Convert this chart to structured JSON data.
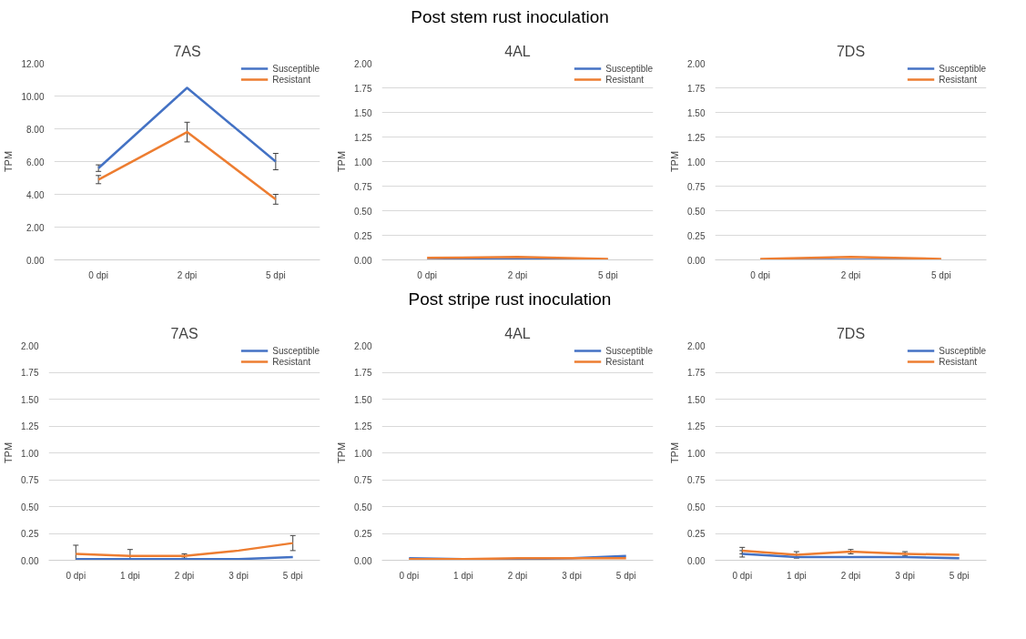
{
  "chart_data": [
    {
      "type": "line",
      "title": "7AS",
      "annotations": [
        "Post stem rust inoculation"
      ],
      "ylabel": "TPM",
      "categories": [
        "0 dpi",
        "2 dpi",
        "5 dpi"
      ],
      "ylim": [
        0,
        12
      ],
      "yticks": [
        {
          "value": 0,
          "label": "0.00"
        },
        {
          "value": 2,
          "label": "2.00"
        },
        {
          "value": 4,
          "label": "4.00"
        },
        {
          "value": 6,
          "label": "6.00"
        },
        {
          "value": 8,
          "label": "8.00"
        },
        {
          "value": 10,
          "label": "10.00"
        },
        {
          "value": 12,
          "label": "12.00"
        }
      ],
      "grid": "y",
      "legend": "top right",
      "line_style": "solid",
      "series": [
        {
          "name": "Susceptible",
          "color": "#4472c4",
          "values": [
            5.6,
            10.5,
            6.0
          ],
          "errors": [
            0.2,
            null,
            0.5
          ]
        },
        {
          "name": "Resistant",
          "color": "#ed7d31",
          "values": [
            4.9,
            7.8,
            3.7
          ],
          "errors": [
            0.25,
            0.6,
            0.3
          ]
        }
      ]
    },
    {
      "type": "line",
      "title": "4AL",
      "ylabel": "TPM",
      "categories": [
        "0 dpi",
        "2 dpi",
        "5 dpi"
      ],
      "ylim": [
        0,
        2
      ],
      "yticks": [
        {
          "value": 0,
          "label": "0.00"
        },
        {
          "value": 0.25,
          "label": "0.25"
        },
        {
          "value": 0.5,
          "label": "0.50"
        },
        {
          "value": 0.75,
          "label": "0.75"
        },
        {
          "value": 1,
          "label": "1.00"
        },
        {
          "value": 1.25,
          "label": "1.25"
        },
        {
          "value": 1.5,
          "label": "1.50"
        },
        {
          "value": 1.75,
          "label": "1.75"
        },
        {
          "value": 2,
          "label": "2.00"
        }
      ],
      "grid": "y",
      "legend": "top right",
      "line_style": "solid",
      "series": [
        {
          "name": "Susceptible",
          "color": "#4472c4",
          "values": [
            0.0,
            0.01,
            0.0
          ]
        },
        {
          "name": "Resistant",
          "color": "#ed7d31",
          "values": [
            0.02,
            0.03,
            0.01
          ]
        }
      ]
    },
    {
      "type": "line",
      "title": "7DS",
      "ylabel": "TPM",
      "categories": [
        "0 dpi",
        "2 dpi",
        "5 dpi"
      ],
      "ylim": [
        0,
        2
      ],
      "yticks": [
        {
          "value": 0,
          "label": "0.00"
        },
        {
          "value": 0.25,
          "label": "0.25"
        },
        {
          "value": 0.5,
          "label": "0.50"
        },
        {
          "value": 0.75,
          "label": "0.75"
        },
        {
          "value": 1,
          "label": "1.00"
        },
        {
          "value": 1.25,
          "label": "1.25"
        },
        {
          "value": 1.5,
          "label": "1.50"
        },
        {
          "value": 1.75,
          "label": "1.75"
        },
        {
          "value": 2,
          "label": "2.00"
        }
      ],
      "grid": "y",
      "legend": "top right",
      "line_style": "solid",
      "series": [
        {
          "name": "Susceptible",
          "color": "#4472c4",
          "values": [
            null,
            null,
            null
          ]
        },
        {
          "name": "Resistant",
          "color": "#ed7d31",
          "values": [
            0.01,
            0.03,
            0.01
          ]
        }
      ]
    },
    {
      "type": "line",
      "title": "7AS",
      "annotations": [
        "Post stripe rust inoculation"
      ],
      "ylabel": "TPM",
      "categories": [
        "0 dpi",
        "1 dpi",
        "2 dpi",
        "3 dpi",
        "5 dpi"
      ],
      "ylim": [
        0,
        2
      ],
      "yticks": [
        {
          "value": 0,
          "label": "0.00"
        },
        {
          "value": 0.25,
          "label": "0.25"
        },
        {
          "value": 0.5,
          "label": "0.50"
        },
        {
          "value": 0.75,
          "label": "0.75"
        },
        {
          "value": 1,
          "label": "1.00"
        },
        {
          "value": 1.25,
          "label": "1.25"
        },
        {
          "value": 1.5,
          "label": "1.50"
        },
        {
          "value": 1.75,
          "label": "1.75"
        },
        {
          "value": 2,
          "label": "2.00"
        }
      ],
      "grid": "y",
      "legend": "top right",
      "line_style": "solid",
      "series": [
        {
          "name": "Susceptible",
          "color": "#4472c4",
          "values": [
            0.01,
            0.01,
            0.01,
            0.01,
            0.03
          ]
        },
        {
          "name": "Resistant",
          "color": "#ed7d31",
          "values": [
            0.06,
            0.04,
            0.04,
            0.09,
            0.16
          ],
          "errors": [
            0.08,
            0.06,
            0.02,
            null,
            0.07
          ]
        }
      ]
    },
    {
      "type": "line",
      "title": "4AL",
      "ylabel": "TPM",
      "categories": [
        "0 dpi",
        "1 dpi",
        "2 dpi",
        "3 dpi",
        "5 dpi"
      ],
      "ylim": [
        0,
        2
      ],
      "yticks": [
        {
          "value": 0,
          "label": "0.00"
        },
        {
          "value": 0.25,
          "label": "0.25"
        },
        {
          "value": 0.5,
          "label": "0.50"
        },
        {
          "value": 0.75,
          "label": "0.75"
        },
        {
          "value": 1,
          "label": "1.00"
        },
        {
          "value": 1.25,
          "label": "1.25"
        },
        {
          "value": 1.5,
          "label": "1.50"
        },
        {
          "value": 1.75,
          "label": "1.75"
        },
        {
          "value": 2,
          "label": "2.00"
        }
      ],
      "grid": "y",
      "legend": "top right",
      "line_style": "solid",
      "series": [
        {
          "name": "Susceptible",
          "color": "#4472c4",
          "values": [
            0.02,
            0.01,
            0.01,
            0.02,
            0.04
          ]
        },
        {
          "name": "Resistant",
          "color": "#ed7d31",
          "values": [
            0.01,
            0.01,
            0.02,
            0.02,
            0.02
          ]
        }
      ]
    },
    {
      "type": "line",
      "title": "7DS",
      "ylabel": "TPM",
      "categories": [
        "0 dpi",
        "1 dpi",
        "2 dpi",
        "3 dpi",
        "5 dpi"
      ],
      "ylim": [
        0,
        2
      ],
      "yticks": [
        {
          "value": 0,
          "label": "0.00"
        },
        {
          "value": 0.25,
          "label": "0.25"
        },
        {
          "value": 0.5,
          "label": "0.50"
        },
        {
          "value": 0.75,
          "label": "0.75"
        },
        {
          "value": 1,
          "label": "1.00"
        },
        {
          "value": 1.25,
          "label": "1.25"
        },
        {
          "value": 1.5,
          "label": "1.50"
        },
        {
          "value": 1.75,
          "label": "1.75"
        },
        {
          "value": 2,
          "label": "2.00"
        }
      ],
      "grid": "y",
      "legend": "top right",
      "line_style": "solid",
      "series": [
        {
          "name": "Susceptible",
          "color": "#4472c4",
          "values": [
            0.06,
            0.03,
            0.03,
            0.03,
            0.02
          ],
          "errors": [
            0.03,
            null,
            null,
            null,
            null
          ]
        },
        {
          "name": "Resistant",
          "color": "#ed7d31",
          "values": [
            0.09,
            0.05,
            0.08,
            0.06,
            0.05
          ],
          "errors": [
            0.03,
            0.03,
            0.02,
            0.02,
            null
          ]
        }
      ]
    }
  ]
}
